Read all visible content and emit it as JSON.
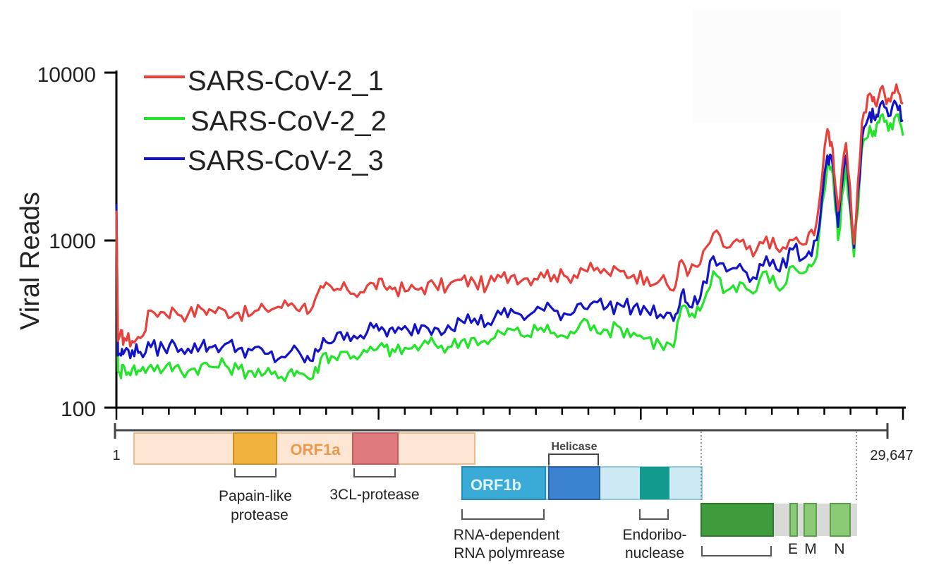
{
  "chart_data": {
    "type": "line",
    "ylabel": "Viral Reads",
    "yscale": "log",
    "ylim": [
      100,
      10000
    ],
    "yticks": [
      "100",
      "1000",
      "10000"
    ],
    "xlim": [
      1,
      29647
    ],
    "x_start_label": "1",
    "x_end_label": "29,647",
    "x_positions": [
      1,
      60,
      130,
      300,
      600,
      900,
      1300,
      1800,
      2200,
      2700,
      3200,
      3600,
      4100,
      4600,
      5100,
      5600,
      6100,
      6600,
      7000,
      7400,
      7800,
      8200,
      8700,
      9200,
      9700,
      10100,
      10500,
      11000,
      11500,
      12000,
      12500,
      13000,
      13500,
      14000,
      14500,
      15000,
      15500,
      16000,
      16500,
      17000,
      17500,
      18000,
      18500,
      19000,
      19500,
      20000,
      20500,
      21000,
      21300,
      21600,
      22000,
      22500,
      23000,
      23500,
      24000,
      24500,
      25000,
      25500,
      26000,
      26400,
      26800,
      27000,
      27200,
      27500,
      27800,
      28100,
      28400,
      28600,
      28800,
      29100,
      29400,
      29647
    ],
    "series": [
      {
        "name": "SARS-CoV-2_1",
        "color": "#e8413c",
        "values": [
          1500,
          250,
          270,
          260,
          250,
          260,
          380,
          370,
          380,
          360,
          390,
          380,
          380,
          370,
          360,
          390,
          400,
          420,
          400,
          400,
          520,
          500,
          510,
          490,
          550,
          530,
          520,
          500,
          520,
          540,
          530,
          580,
          560,
          540,
          600,
          620,
          590,
          640,
          620,
          600,
          680,
          660,
          640,
          650,
          620,
          600,
          580,
          500,
          760,
          650,
          720,
          1100,
          900,
          980,
          800,
          1050,
          850,
          1000,
          950,
          1300,
          4600,
          3500,
          1500,
          3800,
          950,
          5000,
          7500,
          6500,
          8000,
          7000,
          8500,
          6500
        ]
      },
      {
        "name": "SARS-CoV-2_2",
        "color": "#22e52a",
        "values": [
          1200,
          165,
          160,
          175,
          170,
          165,
          180,
          170,
          175,
          165,
          180,
          175,
          180,
          170,
          165,
          160,
          150,
          170,
          160,
          150,
          210,
          200,
          215,
          205,
          220,
          230,
          215,
          225,
          235,
          240,
          230,
          250,
          260,
          240,
          280,
          290,
          270,
          300,
          280,
          260,
          320,
          310,
          290,
          300,
          280,
          260,
          240,
          230,
          400,
          350,
          380,
          650,
          500,
          560,
          480,
          650,
          500,
          700,
          650,
          800,
          2800,
          2500,
          1000,
          2800,
          800,
          3500,
          4800,
          4200,
          5500,
          4500,
          5600,
          4200
        ]
      },
      {
        "name": "SARS-CoV-2_3",
        "color": "#1313c7",
        "values": [
          1650,
          205,
          210,
          215,
          220,
          215,
          230,
          225,
          240,
          225,
          235,
          230,
          240,
          225,
          220,
          210,
          195,
          220,
          200,
          190,
          260,
          250,
          280,
          270,
          300,
          290,
          280,
          290,
          310,
          300,
          310,
          330,
          340,
          320,
          360,
          370,
          350,
          390,
          380,
          360,
          420,
          430,
          400,
          410,
          400,
          380,
          360,
          330,
          480,
          400,
          450,
          800,
          650,
          720,
          600,
          800,
          650,
          880,
          800,
          1000,
          3200,
          2800,
          1200,
          3200,
          900,
          4000,
          5800,
          5200,
          6500,
          5500,
          6500,
          5200
        ]
      }
    ]
  },
  "genome": {
    "orf1a_label": "ORF1a",
    "orf1b_label": "ORF1b",
    "helicase_label": "Helicase",
    "papain_label_1": "Papain-like",
    "papain_label_2": "protease",
    "cl_label": "3CL-protease",
    "rdrp_label_1": "RNA-dependent",
    "rdrp_label_2": "RNA polymrease",
    "endo_label_1": "Endoribo-",
    "endo_label_2": "nuclease",
    "e_label": "E",
    "m_label": "M",
    "n_label": "N",
    "colors": {
      "orf1a_fill": "#fde7d4",
      "orf1a_stroke": "#f1b98a",
      "orf1a_text": "#e99a4f",
      "papain_fill": "#f0b43e",
      "papain_stroke": "#d18d1f",
      "cl_fill": "#df7a7f",
      "cl_stroke": "#c85a5f",
      "orf1b_fill": "#3aaad6",
      "orf1b_stroke": "#2a8ab6",
      "helicase_fill": "#3b82d0",
      "helicase_stroke": "#2560a8",
      "orf1b_light": "#cde9f3",
      "orf1b_light_stroke": "#8fcbe0",
      "endo_fill": "#139a8e",
      "spike_fill": "#3e9c3c",
      "spike_stroke": "#2d7a2c",
      "tail_fill": "#d9d9d9",
      "small_fill": "#8bcb78",
      "small_stroke": "#5ba048"
    }
  }
}
